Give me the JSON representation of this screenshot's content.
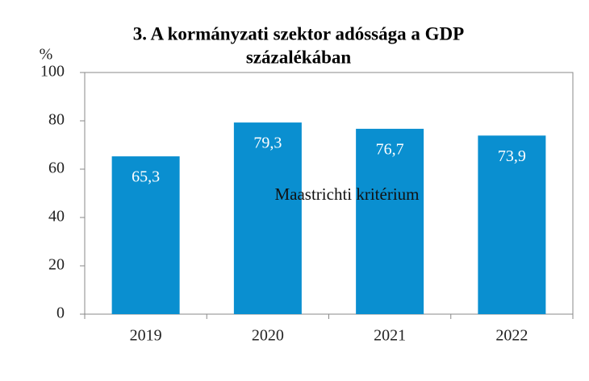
{
  "chart_data": {
    "type": "bar",
    "title": [
      "3. A kormányzati szektor adóssága a GDP",
      "százalékában"
    ],
    "y_label": "%",
    "annotation": "Maastrichti kritérium",
    "categories": [
      "2019",
      "2020",
      "2021",
      "2022"
    ],
    "values": [
      65.3,
      79.3,
      76.7,
      73.9
    ],
    "value_labels": [
      "65,3",
      "79,3",
      "76,7",
      "73,9"
    ],
    "color": "#0a8fd0",
    "ylim": [
      0,
      100
    ],
    "yticks": [
      0,
      20,
      40,
      60,
      80,
      100
    ],
    "grid": false
  }
}
